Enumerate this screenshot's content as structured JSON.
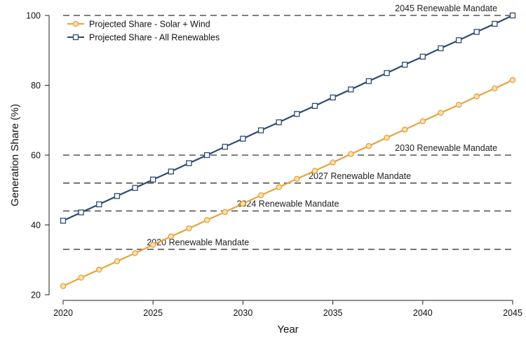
{
  "chart_data": {
    "type": "line",
    "title": "",
    "xlabel": "Year",
    "ylabel": "Generation Share (%)",
    "xlim": [
      2020,
      2045
    ],
    "ylim": [
      20,
      100
    ],
    "xticks": [
      2020,
      2025,
      2030,
      2035,
      2040,
      2045
    ],
    "yticks": [
      20,
      40,
      60,
      80,
      100
    ],
    "grid": false,
    "legend_position": "top-left",
    "x": [
      2020,
      2021,
      2022,
      2023,
      2024,
      2025,
      2026,
      2027,
      2028,
      2029,
      2030,
      2031,
      2032,
      2033,
      2034,
      2035,
      2036,
      2037,
      2038,
      2039,
      2040,
      2041,
      2042,
      2043,
      2044,
      2045
    ],
    "series": [
      {
        "name": "Projected Share - Solar + Wind",
        "color": "#e8a33a",
        "marker": "circle",
        "values": [
          22.5,
          24.9,
          27.2,
          29.6,
          31.9,
          34.3,
          36.7,
          39.0,
          41.4,
          43.7,
          46.1,
          48.5,
          50.8,
          53.2,
          55.5,
          57.9,
          60.3,
          62.6,
          65.0,
          67.3,
          69.7,
          72.1,
          74.4,
          76.8,
          79.1,
          81.5
        ]
      },
      {
        "name": "Projected Share - All Renewables",
        "color": "#2e4a6e",
        "marker": "square",
        "values": [
          41.2,
          43.6,
          45.9,
          48.3,
          50.6,
          53.0,
          55.3,
          57.7,
          60.0,
          62.4,
          64.7,
          67.1,
          69.4,
          71.8,
          74.1,
          76.5,
          78.8,
          81.2,
          83.5,
          85.9,
          88.2,
          90.6,
          92.9,
          95.3,
          97.6,
          100.0
        ]
      }
    ],
    "annotations": [
      {
        "label": "2020 Renewable Mandate",
        "y": 33,
        "label_x": 2027.5
      },
      {
        "label": "2024 Renewable Mandate",
        "y": 44,
        "label_x": 2032.5
      },
      {
        "label": "2027 Renewable Mandate",
        "y": 52,
        "label_x": 2036.5
      },
      {
        "label": "2030 Renewable Mandate",
        "y": 60,
        "label_x": 2041.3
      },
      {
        "label": "2045 Renewable Mandate",
        "y": 100,
        "label_x": 2041.3
      }
    ],
    "mandate_color": "#555555"
  }
}
